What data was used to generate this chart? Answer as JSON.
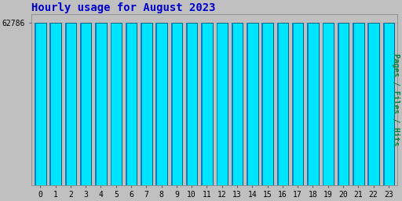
{
  "title": "Hourly usage for August 2023",
  "ylabel": "Pages / Files / Hits",
  "hours": [
    0,
    1,
    2,
    3,
    4,
    5,
    6,
    7,
    8,
    9,
    10,
    11,
    12,
    13,
    14,
    15,
    16,
    17,
    18,
    19,
    20,
    21,
    22,
    23
  ],
  "values": [
    62550,
    62600,
    62600,
    62650,
    62720,
    62740,
    62786,
    62620,
    62590,
    62560,
    62660,
    62700,
    62640,
    62700,
    62590,
    62510,
    62560,
    62580,
    62580,
    62580,
    62650,
    62620,
    62540,
    62540
  ],
  "ytick_label": "62786",
  "ytick_val": 62786,
  "ymin": 0,
  "ymax": 66000,
  "bar_face_color": "#00e5ff",
  "bar_edge_color": "#006080",
  "bar_stripe_color": "#0080c0",
  "background_color": "#c0c0c0",
  "plot_bg_color": "#c0c0c0",
  "title_color": "#0000cc",
  "ylabel_color": "#008040",
  "tick_color": "#000000",
  "title_fontsize": 10,
  "ylabel_fontsize": 7,
  "tick_fontsize": 7
}
